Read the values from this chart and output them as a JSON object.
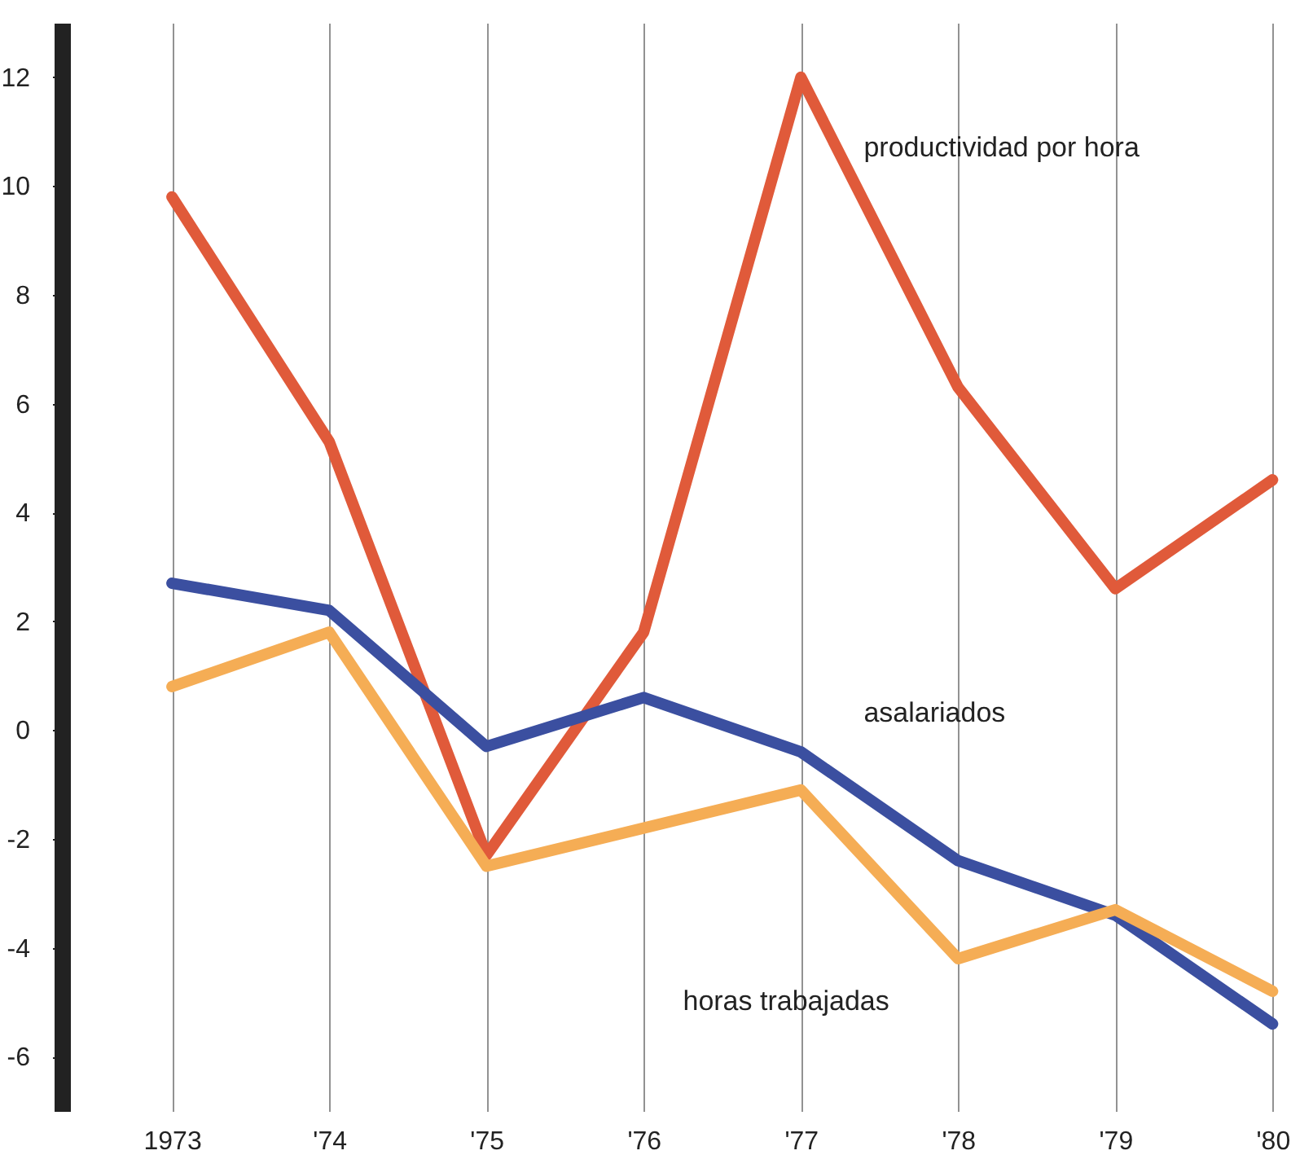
{
  "chart_data": {
    "type": "line",
    "categories": [
      "1973",
      "'74",
      "'75",
      "'76",
      "'77",
      "'78",
      "'79",
      "'80"
    ],
    "series": [
      {
        "name": "productividad por hora",
        "color": "#e05a3a",
        "values": [
          9.8,
          5.3,
          -2.3,
          1.8,
          12.0,
          6.3,
          2.6,
          4.6
        ]
      },
      {
        "name": "asalariados",
        "color": "#3b4fa0",
        "values": [
          2.7,
          2.2,
          -0.3,
          0.6,
          -0.4,
          -2.4,
          -3.4,
          -5.4
        ]
      },
      {
        "name": "horas trabajadas",
        "color": "#f5ad55",
        "values": [
          0.8,
          1.8,
          -2.5,
          -1.8,
          -1.1,
          -4.2,
          -3.3,
          -4.8
        ]
      }
    ],
    "ylim": [
      -7,
      13
    ],
    "yticks": [
      -6,
      -4,
      -2,
      0,
      2,
      4,
      6,
      8,
      10,
      12
    ],
    "grid": "x",
    "legend": false,
    "marker": "none",
    "line_style": "solid"
  }
}
